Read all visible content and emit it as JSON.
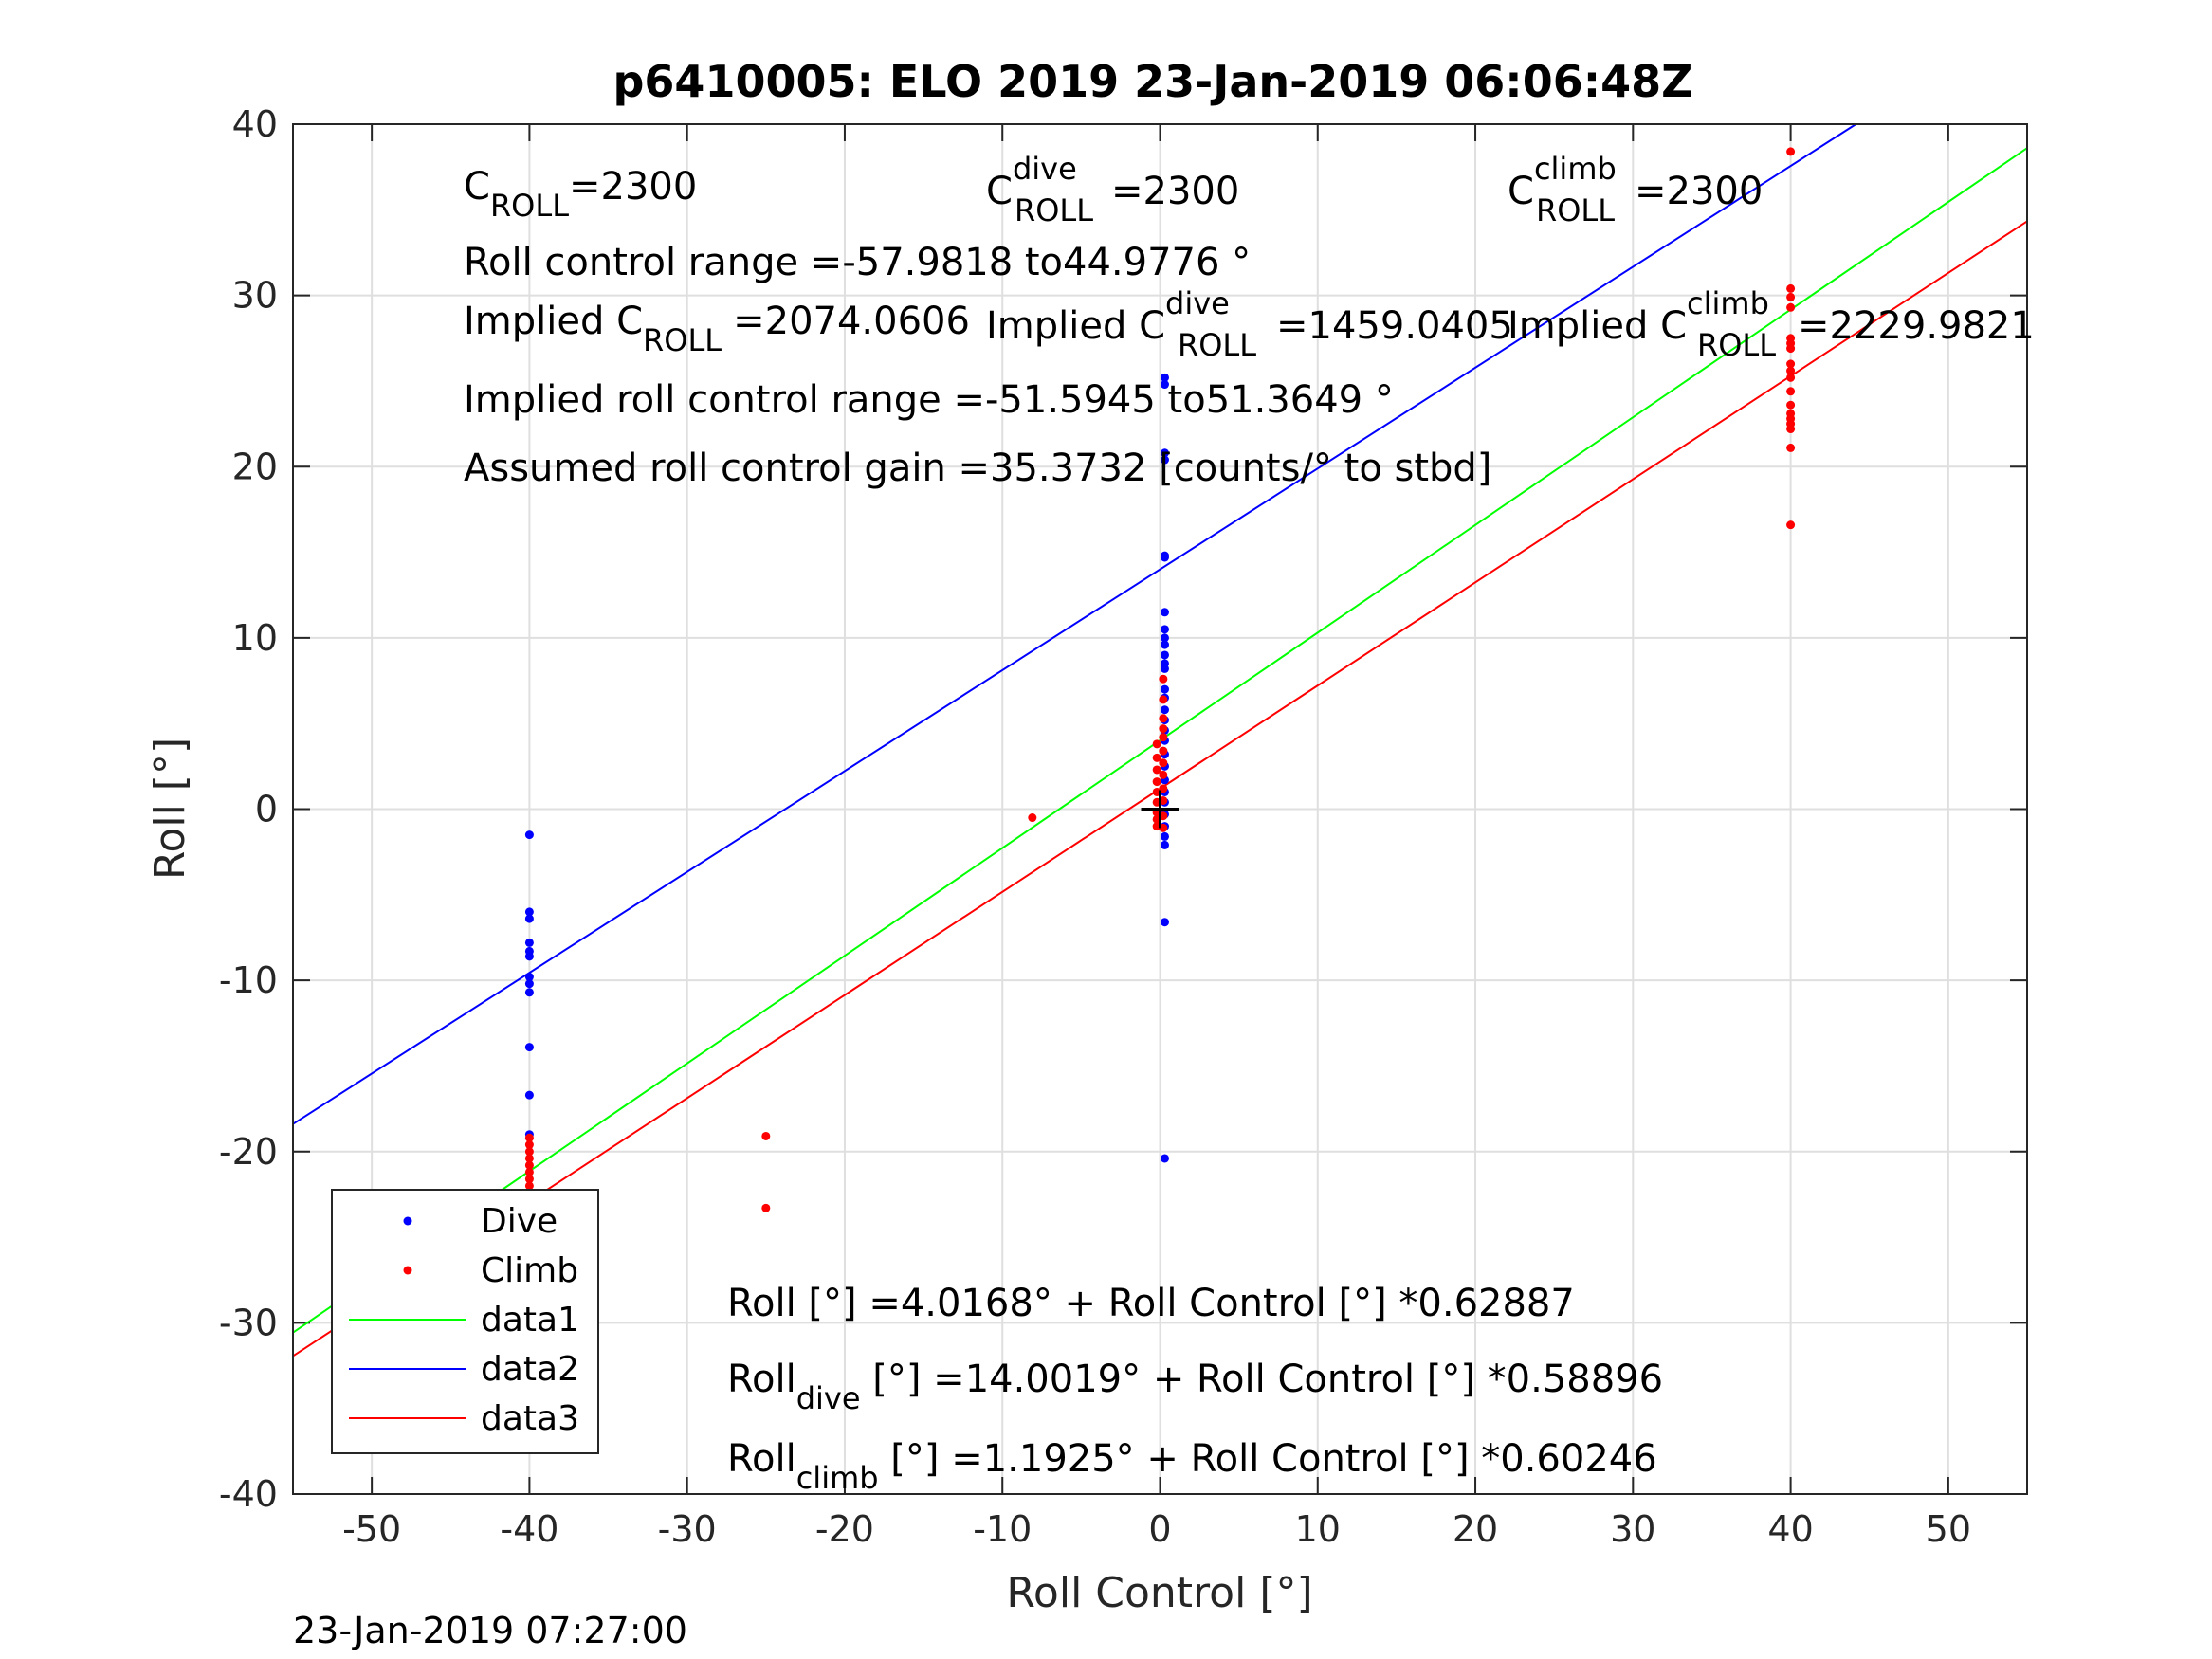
{
  "title": "p6410005: ELO 2019 23-Jan-2019 06:06:48Z",
  "footer": "23-Jan-2019 07:27:00",
  "chart_data": {
    "type": "scatter",
    "title": "p6410005: ELO 2019 23-Jan-2019 06:06:48Z",
    "xlabel": "Roll Control [°]",
    "ylabel": "Roll [°]",
    "xlim": [
      -55,
      55
    ],
    "ylim": [
      -40,
      40
    ],
    "xticks": [
      -50,
      -40,
      -30,
      -20,
      -10,
      0,
      10,
      20,
      30,
      40,
      50
    ],
    "yticks": [
      -40,
      -30,
      -20,
      -10,
      0,
      10,
      20,
      30,
      40
    ],
    "grid": true,
    "legend_placement": "bottom-left",
    "legend": [
      "Dive",
      "Climb",
      "data1",
      "data2",
      "data3"
    ],
    "series": [
      {
        "name": "Dive",
        "kind": "points",
        "color": "#0000ff",
        "points": [
          [
            -40,
            -1.5
          ],
          [
            -40,
            -6
          ],
          [
            -40,
            -6.4
          ],
          [
            -40,
            -7.8
          ],
          [
            -40,
            -8.3
          ],
          [
            -40,
            -8.6
          ],
          [
            -40,
            -9.8
          ],
          [
            -40,
            -10.2
          ],
          [
            -40,
            -10.7
          ],
          [
            -40,
            -13.9
          ],
          [
            -40,
            -16.7
          ],
          [
            -40,
            -19
          ],
          [
            0.3,
            25.2
          ],
          [
            0.3,
            24.8
          ],
          [
            0.3,
            20.8
          ],
          [
            0.3,
            20.4
          ],
          [
            0.3,
            14.8
          ],
          [
            0.3,
            14.7
          ],
          [
            0.3,
            11.5
          ],
          [
            0.3,
            10.5
          ],
          [
            0.3,
            10
          ],
          [
            0.3,
            9.6
          ],
          [
            0.3,
            9
          ],
          [
            0.3,
            8.5
          ],
          [
            0.3,
            8.2
          ],
          [
            0.3,
            7
          ],
          [
            0.3,
            6.5
          ],
          [
            0.3,
            5.8
          ],
          [
            0.3,
            5.2
          ],
          [
            0.3,
            4.6
          ],
          [
            0.3,
            4
          ],
          [
            0.3,
            3.2
          ],
          [
            0.3,
            2.5
          ],
          [
            0.3,
            1.7
          ],
          [
            0.3,
            1
          ],
          [
            0.3,
            0.4
          ],
          [
            0.3,
            -0.3
          ],
          [
            0.3,
            -1
          ],
          [
            0.3,
            -1.6
          ],
          [
            0.3,
            -2.1
          ],
          [
            0.3,
            -6.6
          ],
          [
            0.3,
            -20.4
          ]
        ]
      },
      {
        "name": "Climb",
        "kind": "points",
        "color": "#ff0000",
        "points": [
          [
            40,
            38.4
          ],
          [
            40,
            30.4
          ],
          [
            40,
            29.9
          ],
          [
            40,
            29.3
          ],
          [
            40,
            27.5
          ],
          [
            40,
            27.2
          ],
          [
            40,
            26.9
          ],
          [
            40,
            26
          ],
          [
            40,
            25.6
          ],
          [
            40,
            25.2
          ],
          [
            40,
            24.4
          ],
          [
            40,
            23.6
          ],
          [
            40,
            23.1
          ],
          [
            40,
            22.8
          ],
          [
            40,
            22.5
          ],
          [
            40,
            22.2
          ],
          [
            40,
            21.1
          ],
          [
            40,
            16.6
          ],
          [
            -25,
            -19.1
          ],
          [
            -25,
            -23.3
          ],
          [
            -8.1,
            -0.5
          ],
          [
            -0.2,
            3.8
          ],
          [
            -0.2,
            3
          ],
          [
            -0.2,
            2.3
          ],
          [
            -0.2,
            1.6
          ],
          [
            -0.2,
            1
          ],
          [
            -0.2,
            0.4
          ],
          [
            -0.2,
            -0.2
          ],
          [
            -0.2,
            -0.6
          ],
          [
            -0.2,
            -1
          ],
          [
            0.2,
            5.3
          ],
          [
            0.2,
            4.7
          ],
          [
            0.2,
            4.2
          ],
          [
            0.2,
            3.4
          ],
          [
            0.2,
            2.7
          ],
          [
            0.2,
            2
          ],
          [
            0.2,
            1.2
          ],
          [
            0.2,
            0.5
          ],
          [
            0.2,
            -0.4
          ],
          [
            0.2,
            -1.1
          ],
          [
            0.2,
            7.6
          ],
          [
            0.2,
            6.4
          ],
          [
            -40,
            -19.2
          ],
          [
            -40,
            -19.6
          ],
          [
            -40,
            -20
          ],
          [
            -40,
            -20.4
          ],
          [
            -40,
            -20.8
          ],
          [
            -40,
            -21.2
          ],
          [
            -40,
            -21.6
          ],
          [
            -40,
            -22
          ],
          [
            -40,
            -22.4
          ],
          [
            -40,
            -22.8
          ],
          [
            -40,
            -23.2
          ],
          [
            -40,
            -23.6
          ],
          [
            -40,
            -24
          ],
          [
            -40,
            -24.4
          ],
          [
            -40,
            -24.8
          ],
          [
            -40,
            -25.2
          ],
          [
            -40,
            -25.6
          ],
          [
            -40,
            -26
          ]
        ]
      },
      {
        "name": "data1",
        "kind": "line",
        "color": "#00ff00",
        "intercept": 4.0168,
        "slope": 0.62887
      },
      {
        "name": "data2",
        "kind": "line",
        "color": "#0000ff",
        "intercept": 14.0019,
        "slope": 0.58896
      },
      {
        "name": "data3",
        "kind": "line",
        "color": "#ff0000",
        "intercept": 1.1925,
        "slope": 0.60246
      }
    ],
    "marker_origin": [
      0,
      0
    ],
    "annotations": {
      "c_roll": "=2300",
      "c_roll_dive": "=2300",
      "c_roll_climb": "=2300",
      "roll_control_range": "Roll control range =-57.9818 to44.9776 °",
      "implied_c_roll": "=2074.0606",
      "implied_c_roll_dive": "=1459.0405",
      "implied_c_roll_climb": "=2229.9821",
      "implied_roll_control_range": "Implied roll control range =-51.5945 to51.3649 °",
      "assumed_gain": "Assumed roll control gain =35.3732 [counts/° to stbd]",
      "eq_all": "Roll [°] =4.0168° + Roll Control [°] *0.62887",
      "eq_dive_rest": " [°] =14.0019° + Roll Control [°] *0.58896",
      "eq_climb_rest": " [°] =1.1925° + Roll Control [°] *0.60246"
    }
  }
}
